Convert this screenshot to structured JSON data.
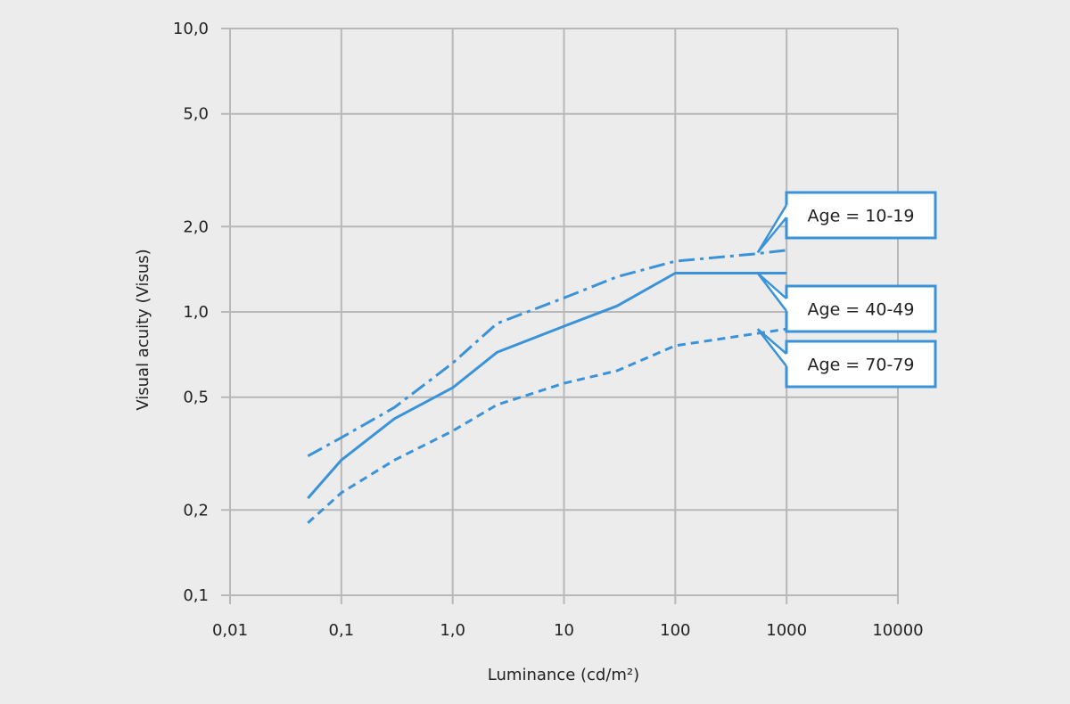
{
  "chart_data": {
    "type": "line",
    "xlabel": "Luminance (cd/m²)",
    "ylabel": "Visual acuity (Visus)",
    "x_scale": "log",
    "y_scale": "log",
    "xlim": [
      0.01,
      10000
    ],
    "ylim": [
      0.1,
      10.0
    ],
    "grid": true,
    "x_ticks": [
      0.01,
      0.1,
      1,
      10,
      100,
      1000,
      10000
    ],
    "x_tick_labels": [
      "0,01",
      "0,1",
      "1,0",
      "10",
      "100",
      "1000",
      "10000"
    ],
    "y_ticks": [
      0.1,
      0.2,
      0.5,
      1.0,
      2.0,
      5.0,
      10.0
    ],
    "y_tick_labels": [
      "0,1",
      "0,2",
      "0,5",
      "1,0",
      "2,0",
      "5,0",
      "10,0"
    ],
    "line_color": "#3a93d8",
    "series": [
      {
        "name": "Age = 10-19",
        "dash": "dash-dot",
        "points": [
          [
            0.05,
            0.31
          ],
          [
            0.1,
            0.36
          ],
          [
            0.3,
            0.46
          ],
          [
            1,
            0.66
          ],
          [
            2.5,
            0.91
          ],
          [
            10,
            1.12
          ],
          [
            30,
            1.33
          ],
          [
            100,
            1.51
          ],
          [
            500,
            1.6
          ],
          [
            1000,
            1.65
          ]
        ]
      },
      {
        "name": "Age = 40-49",
        "dash": "solid",
        "points": [
          [
            0.05,
            0.22
          ],
          [
            0.1,
            0.3
          ],
          [
            0.3,
            0.42
          ],
          [
            1,
            0.54
          ],
          [
            2.5,
            0.72
          ],
          [
            10,
            0.89
          ],
          [
            30,
            1.05
          ],
          [
            100,
            1.37
          ],
          [
            1000,
            1.37
          ]
        ]
      },
      {
        "name": "Age = 70-79",
        "dash": "dashed",
        "points": [
          [
            0.05,
            0.18
          ],
          [
            0.1,
            0.23
          ],
          [
            0.3,
            0.3
          ],
          [
            1,
            0.38
          ],
          [
            2.5,
            0.47
          ],
          [
            10,
            0.56
          ],
          [
            30,
            0.62
          ],
          [
            100,
            0.76
          ],
          [
            1000,
            0.87
          ]
        ]
      }
    ]
  }
}
